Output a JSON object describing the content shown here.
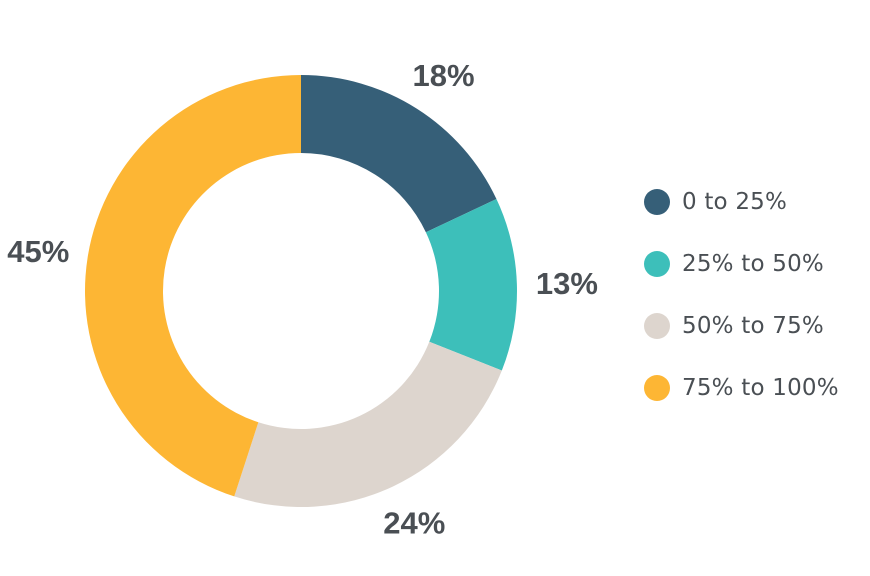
{
  "chart_data": {
    "type": "pie",
    "variant": "donut",
    "title": "",
    "categories": [
      "0 to 25%",
      "25% to 50%",
      "50% to 75%",
      "75% to 100%"
    ],
    "values": [
      18,
      13,
      24,
      45
    ],
    "value_labels": [
      "18%",
      "13%",
      "24%",
      "45%"
    ],
    "colors": [
      "#365f78",
      "#3dbfba",
      "#ddd5ce",
      "#fdb634"
    ],
    "legend_position": "right"
  }
}
